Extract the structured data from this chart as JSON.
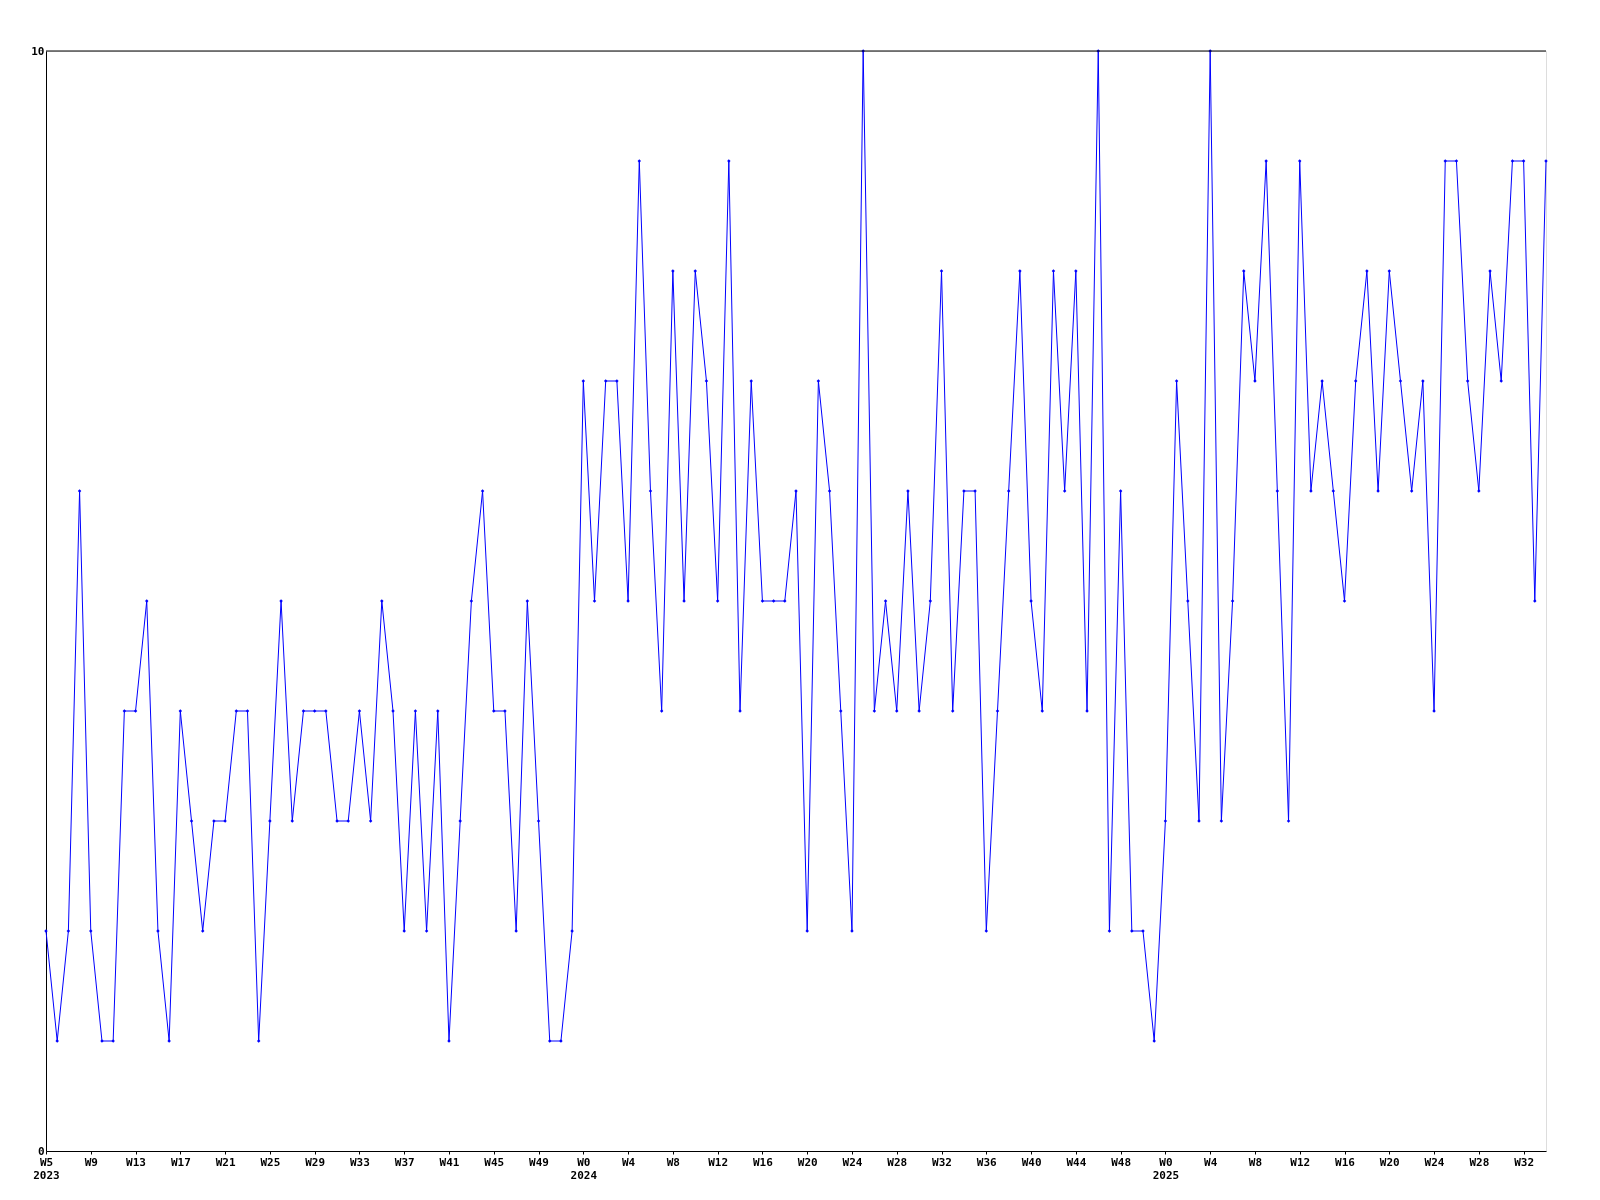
{
  "chart_data": {
    "type": "line",
    "categories": [
      "W5\n2023",
      null,
      null,
      null,
      "W9",
      null,
      null,
      null,
      "W13",
      null,
      null,
      null,
      "W17",
      null,
      null,
      null,
      "W21",
      null,
      null,
      null,
      "W25",
      null,
      null,
      null,
      "W29",
      null,
      null,
      null,
      "W33",
      null,
      null,
      null,
      "W37",
      null,
      null,
      null,
      "W41",
      null,
      null,
      null,
      "W45",
      null,
      null,
      null,
      "W49",
      null,
      null,
      null,
      "W0\n2024",
      null,
      null,
      null,
      "W4",
      null,
      null,
      null,
      "W8",
      null,
      null,
      null,
      "W12",
      null,
      null,
      null,
      "W16",
      null,
      null,
      null,
      "W20",
      null,
      null,
      null,
      "W24",
      null,
      null,
      null,
      "W28",
      null,
      null,
      null,
      "W32",
      null,
      null,
      null,
      "W36",
      null,
      null,
      null,
      "W40",
      null,
      null,
      null,
      "W44",
      null,
      null,
      null,
      "W48",
      null,
      null,
      null,
      "W0\n2025",
      null,
      null,
      null,
      "W4",
      null,
      null,
      null,
      "W8",
      null,
      null,
      null,
      "W12",
      null,
      null,
      null,
      "W16",
      null,
      null,
      null,
      "W20",
      null,
      null,
      null,
      "W24",
      null,
      null,
      null,
      "W28",
      null,
      null,
      null,
      "W32",
      null,
      null
    ],
    "series": [
      {
        "color": "#0000ff",
        "values": [
          2,
          1,
          2,
          6,
          2,
          1,
          1,
          4,
          4,
          5,
          2,
          1,
          4,
          3,
          2,
          3,
          3,
          4,
          4,
          1,
          3,
          5,
          3,
          4,
          4,
          4,
          3,
          3,
          4,
          3,
          5,
          4,
          2,
          4,
          2,
          4,
          1,
          3,
          5,
          6,
          4,
          4,
          2,
          5,
          3,
          1,
          1,
          2,
          7,
          5,
          7,
          7,
          5,
          9,
          6,
          4,
          8,
          5,
          8,
          7,
          5,
          9,
          4,
          7,
          5,
          5,
          5,
          6,
          2,
          7,
          6,
          4,
          2,
          10,
          4,
          5,
          4,
          6,
          4,
          5,
          8,
          4,
          6,
          6,
          2,
          4,
          6,
          8,
          5,
          4,
          8,
          6,
          8,
          4,
          10,
          2,
          6,
          2,
          2,
          1,
          3,
          7,
          5,
          3,
          10,
          3,
          5,
          8,
          7,
          9,
          6,
          3,
          9,
          6,
          7,
          6,
          5,
          7,
          8,
          6,
          8,
          7,
          6,
          7,
          4,
          9,
          9,
          7,
          6,
          8,
          7,
          9,
          9,
          5,
          9
        ]
      }
    ],
    "ylim": [
      0,
      10
    ],
    "yticks": [
      0,
      10
    ],
    "grid": false,
    "marker": "diamond",
    "line_style": "solid"
  }
}
